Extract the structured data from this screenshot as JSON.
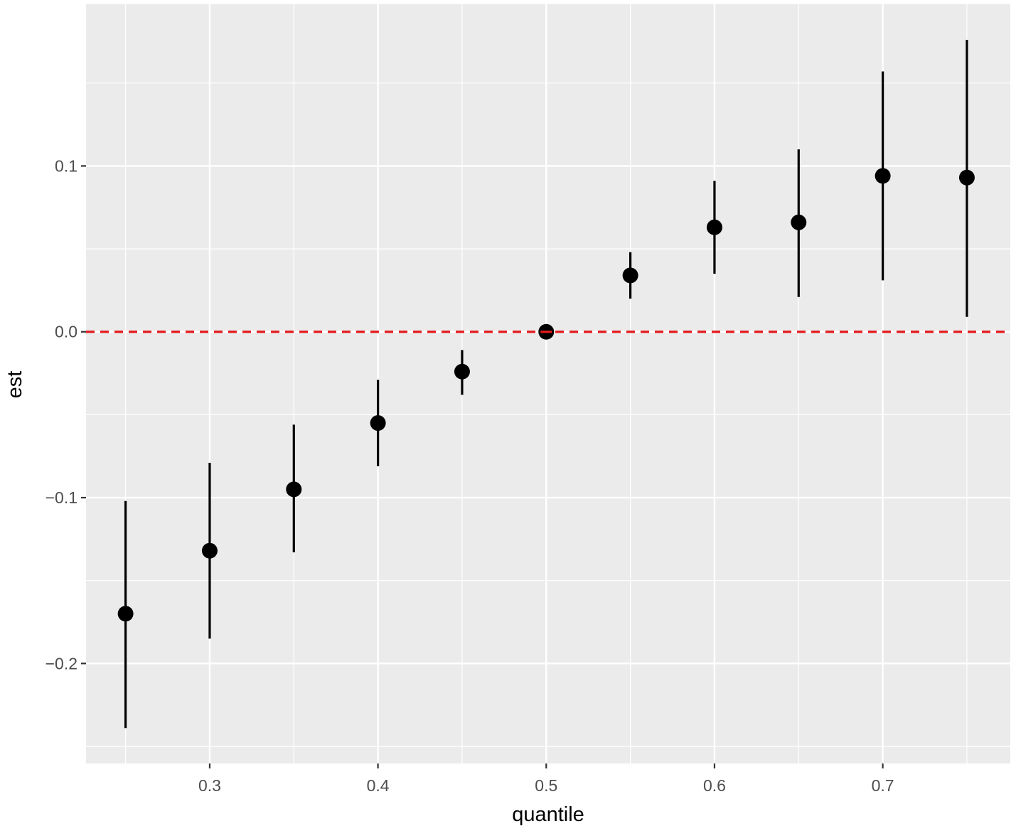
{
  "chart_data": {
    "type": "scatter",
    "title": "",
    "xlabel": "quantile",
    "ylabel": "est",
    "xlim": [
      0.2265,
      0.7758
    ],
    "ylim": [
      -0.2603,
      0.1975
    ],
    "x_ticks": [
      0.3,
      0.4,
      0.5,
      0.6,
      0.7
    ],
    "x_minor_ticks": [
      0.25,
      0.35,
      0.45,
      0.55,
      0.65,
      0.75
    ],
    "y_ticks": [
      -0.2,
      -0.1,
      0.0,
      0.1
    ],
    "y_tick_labels": [
      "−0.2",
      "−0.1",
      "0.0",
      "0.1"
    ],
    "y_minor_ticks": [
      -0.25,
      -0.15,
      -0.05,
      0.05,
      0.15
    ],
    "x_tick_labels": [
      "0.3",
      "0.4",
      "0.5",
      "0.6",
      "0.7"
    ],
    "grid": true,
    "legend": "none",
    "reference_line": {
      "y": 0.0,
      "style": "dashed",
      "color": "#e41a1c"
    },
    "colors": {
      "panel": "#ebebeb",
      "grid": "#ffffff",
      "points": "#000000"
    },
    "series": [
      {
        "x": [
          0.25,
          0.3,
          0.35,
          0.4,
          0.45,
          0.5,
          0.55,
          0.6,
          0.65,
          0.7,
          0.75
        ],
        "y": [
          -0.17,
          -0.132,
          -0.095,
          -0.055,
          -0.024,
          0.0,
          0.034,
          0.063,
          0.066,
          0.094,
          0.093
        ],
        "ymin": [
          -0.239,
          -0.185,
          -0.133,
          -0.081,
          -0.038,
          0.0,
          0.02,
          0.035,
          0.021,
          0.031,
          0.009
        ],
        "ymax": [
          -0.102,
          -0.079,
          -0.056,
          -0.029,
          -0.011,
          0.0,
          0.048,
          0.091,
          0.11,
          0.157,
          0.176
        ]
      }
    ]
  }
}
